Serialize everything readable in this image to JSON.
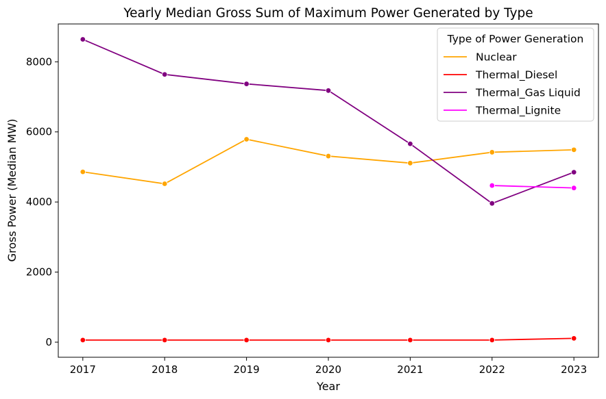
{
  "chart_data": {
    "type": "line",
    "title": "Yearly Median Gross Sum of Maximum Power Generated by Type",
    "xlabel": "Year",
    "ylabel": "Gross Power (Median MW)",
    "x": [
      "2017",
      "2018",
      "2019",
      "2020",
      "2021",
      "2022",
      "2023"
    ],
    "xlim": [
      2016.7,
      2023.3
    ],
    "ylim": [
      -430,
      9080
    ],
    "yticks": [
      "0",
      "2000",
      "4000",
      "6000",
      "8000"
    ],
    "grid": false,
    "legend": {
      "title": "Type of Power Generation",
      "placement": "top-right"
    },
    "series": [
      {
        "name": "Nuclear",
        "color": "#FFA500",
        "points": [
          [
            2017,
            4860
          ],
          [
            2018,
            4520
          ],
          [
            2019,
            5790
          ],
          [
            2020,
            5310
          ],
          [
            2021,
            5110
          ],
          [
            2022,
            5420
          ],
          [
            2023,
            5490
          ]
        ]
      },
      {
        "name": "Thermal_Diesel",
        "color": "#FF0000",
        "points": [
          [
            2017,
            60
          ],
          [
            2018,
            60
          ],
          [
            2019,
            60
          ],
          [
            2020,
            60
          ],
          [
            2021,
            60
          ],
          [
            2022,
            60
          ],
          [
            2023,
            110
          ]
        ]
      },
      {
        "name": "Thermal_Gas Liquid",
        "color": "#800080",
        "points": [
          [
            2017,
            8640
          ],
          [
            2018,
            7640
          ],
          [
            2019,
            7370
          ],
          [
            2020,
            7180
          ],
          [
            2021,
            5660
          ],
          [
            2022,
            3960
          ],
          [
            2023,
            4850
          ]
        ]
      },
      {
        "name": "Thermal_Lignite",
        "color": "#FF00FF",
        "points": [
          [
            2022,
            4470
          ],
          [
            2023,
            4400
          ]
        ]
      }
    ]
  }
}
